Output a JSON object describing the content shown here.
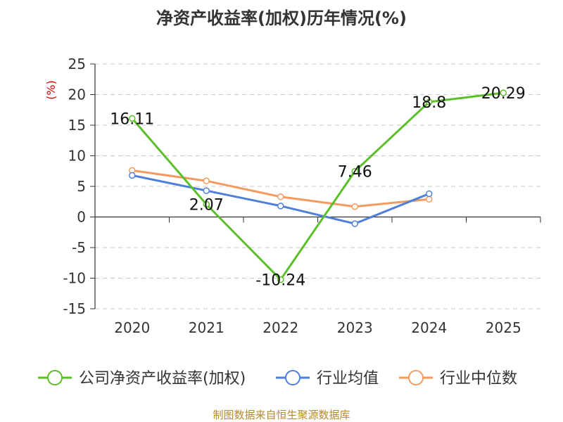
{
  "chart_data": {
    "type": "line",
    "title": "净资产收益率(加权)历年情况(%)",
    "ylabel": "(%)",
    "categories": [
      "2020",
      "2021",
      "2022",
      "2023",
      "2024",
      "2025"
    ],
    "ylim": [
      -15,
      25
    ],
    "yticks": [
      "25",
      "20",
      "15",
      "10",
      "5",
      "0",
      "-5",
      "-10",
      "-15"
    ],
    "grid": true,
    "legend_position": "bottom",
    "series": [
      {
        "name": "公司净资产收益率(加权)",
        "color": "#5cbf2a",
        "values": [
          16.11,
          2.07,
          -10.24,
          7.46,
          18.8,
          20.29
        ],
        "labels": [
          "16.11",
          "2.07",
          "-10.24",
          "7.46",
          "18.8",
          "20.29"
        ]
      },
      {
        "name": "行业均值",
        "color": "#4f7fd9",
        "values": [
          6.8,
          4.3,
          1.8,
          -1.1,
          3.8,
          null
        ]
      },
      {
        "name": "行业中位数",
        "color": "#f39a5f",
        "values": [
          7.6,
          5.9,
          3.3,
          1.7,
          2.9,
          null
        ]
      }
    ]
  },
  "footer": {
    "source": "制图数据来自恒生聚源数据库"
  }
}
